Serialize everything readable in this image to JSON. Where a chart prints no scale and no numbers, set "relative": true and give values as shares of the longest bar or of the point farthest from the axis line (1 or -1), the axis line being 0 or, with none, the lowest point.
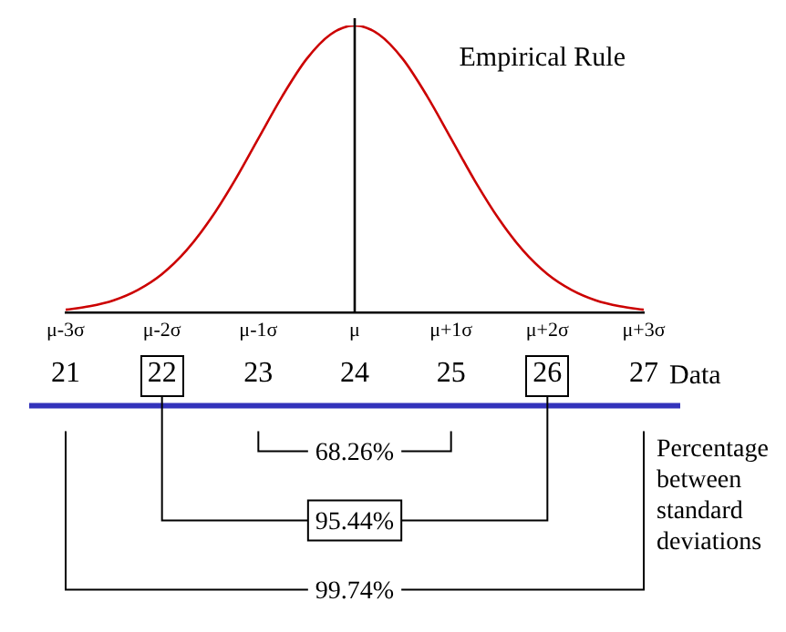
{
  "chart_data": {
    "type": "line",
    "title": "Empirical Rule",
    "relative": true,
    "x": [
      21,
      21.25,
      21.5,
      21.75,
      22,
      22.25,
      22.5,
      22.75,
      23,
      23.25,
      23.5,
      23.75,
      24,
      24.25,
      24.5,
      24.75,
      25,
      25.25,
      25.5,
      25.75,
      26,
      26.25,
      26.5,
      26.75,
      27
    ],
    "series": [
      {
        "color": "#cc0000",
        "values": [
          0.011,
          0.023,
          0.044,
          0.08,
          0.135,
          0.216,
          0.325,
          0.458,
          0.607,
          0.755,
          0.883,
          0.969,
          1,
          0.969,
          0.883,
          0.755,
          0.607,
          0.458,
          0.325,
          0.216,
          0.135,
          0.08,
          0.044,
          0.023,
          0.011
        ]
      }
    ],
    "xlim": [
      21,
      27
    ],
    "xticks": [
      21,
      22,
      23,
      24,
      25,
      26,
      27
    ],
    "xlabel": "Data",
    "ref_lines": [
      {
        "axis": "x",
        "value": 24,
        "color": "#000000"
      }
    ],
    "annotations": [
      "68.26%",
      "95.44%",
      "99.74%",
      "Percentage between standard deviations",
      "μ-3σ",
      "μ-2σ",
      "μ-1σ",
      "μ",
      "μ+1σ",
      "μ+2σ",
      "μ+3σ"
    ],
    "grid": false,
    "legend": false,
    "marker": "none",
    "line_style": "solid"
  }
}
